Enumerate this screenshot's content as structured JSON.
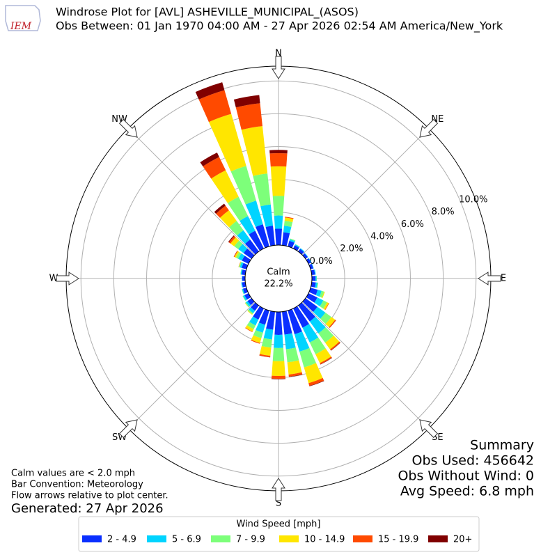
{
  "chart_data": {
    "type": "windrose",
    "title": "Windrose Plot for [AVL] ASHEVILLE_MUNICIPAL_(ASOS)",
    "subtitle": "Obs Between: 01 Jan 1970 04:00 AM - 27 Apr 2026 02:54 AM America/New_York",
    "direction_labels": [
      "N",
      "NE",
      "E",
      "SE",
      "S",
      "SW",
      "W",
      "NW"
    ],
    "x": [
      0,
      10,
      20,
      30,
      40,
      50,
      60,
      70,
      80,
      90,
      100,
      110,
      120,
      130,
      140,
      150,
      160,
      170,
      180,
      190,
      200,
      210,
      220,
      230,
      240,
      250,
      260,
      270,
      280,
      290,
      300,
      310,
      320,
      330,
      340,
      350
    ],
    "ylim": [
      0,
      10.9
    ],
    "yticks": [
      {
        "value": 0,
        "label": "0.0%"
      },
      {
        "value": 2,
        "label": "2.0%"
      },
      {
        "value": 4,
        "label": "4.0%"
      },
      {
        "value": 6,
        "label": "6.0%"
      },
      {
        "value": 8,
        "label": "8.0%"
      },
      {
        "value": 10,
        "label": "10.0%"
      }
    ],
    "calm": {
      "label": "Calm",
      "value": 22.2,
      "value_label": "22.2%"
    },
    "legend_title": "Wind Speed [mph]",
    "series": [
      {
        "name": "2 - 4.9",
        "color": "#0a2fff",
        "values": [
          1.0,
          0.8,
          0.35,
          0.22,
          0.2,
          0.17,
          0.17,
          0.17,
          0.2,
          0.22,
          0.25,
          0.45,
          0.6,
          0.9,
          1.2,
          1.3,
          1.5,
          1.4,
          1.4,
          1.1,
          0.9,
          0.75,
          0.4,
          0.3,
          0.27,
          0.22,
          0.2,
          0.17,
          0.22,
          0.3,
          0.45,
          0.6,
          0.9,
          1.2,
          1.4,
          1.2
        ]
      },
      {
        "name": "5 - 6.9",
        "color": "#00d4ff",
        "values": [
          0.8,
          0.4,
          0.1,
          0.06,
          0.05,
          0.03,
          0.03,
          0.03,
          0.05,
          0.06,
          0.1,
          0.25,
          0.4,
          0.6,
          0.9,
          1.0,
          1.1,
          0.9,
          0.8,
          0.6,
          0.5,
          0.4,
          0.18,
          0.13,
          0.1,
          0.06,
          0.05,
          0.03,
          0.06,
          0.12,
          0.25,
          0.4,
          0.7,
          1.0,
          1.5,
          1.3
        ]
      },
      {
        "name": "7 - 9.9",
        "color": "#7dff7a",
        "values": [
          1.2,
          0.3,
          0.05,
          0.02,
          0,
          0,
          0,
          0,
          0,
          0.02,
          0.05,
          0.15,
          0.25,
          0.45,
          0.7,
          0.8,
          1.0,
          0.8,
          0.8,
          0.5,
          0.35,
          0.25,
          0.08,
          0.05,
          0.03,
          0.02,
          0,
          0,
          0.02,
          0.05,
          0.15,
          0.3,
          0.7,
          1.3,
          2.2,
          1.9
        ]
      },
      {
        "name": "10 - 14.9",
        "color": "#ffe600",
        "values": [
          1.8,
          0.2,
          0,
          0,
          0,
          0,
          0,
          0,
          0,
          0,
          0,
          0.05,
          0.12,
          0.28,
          0.5,
          0.6,
          1.0,
          0.75,
          0.9,
          0.5,
          0.3,
          0.17,
          0.04,
          0.02,
          0,
          0,
          0,
          0,
          0,
          0.02,
          0.1,
          0.28,
          0.8,
          1.8,
          3.3,
          2.9
        ]
      },
      {
        "name": "15 - 19.9",
        "color": "#ff4a00",
        "values": [
          0.8,
          0.05,
          0,
          0,
          0,
          0,
          0,
          0,
          0,
          0,
          0,
          0,
          0.03,
          0.06,
          0.08,
          0.08,
          0.17,
          0.13,
          0.17,
          0.09,
          0.05,
          0.03,
          0,
          0,
          0,
          0,
          0,
          0,
          0,
          0.01,
          0.04,
          0.12,
          0.35,
          0.9,
          1.5,
          1.4
        ]
      },
      {
        "name": "20+",
        "color": "#800000",
        "values": [
          0.2,
          0,
          0,
          0,
          0,
          0,
          0,
          0,
          0,
          0,
          0,
          0,
          0,
          0.01,
          0.02,
          0.02,
          0.03,
          0.02,
          0.03,
          0.01,
          0,
          0,
          0,
          0,
          0,
          0,
          0,
          0,
          0,
          0,
          0.01,
          0.05,
          0.15,
          0.3,
          0.5,
          0.5
        ]
      }
    ]
  },
  "logo": "IEM",
  "notes": [
    "Calm values are < 2.0 mph",
    "Bar Convention: Meteorology",
    "Flow arrows relative to plot center."
  ],
  "generated": "Generated: 27 Apr 2026",
  "summary": [
    "Summary",
    "Obs Used: 456642",
    "Obs Without Wind: 0",
    "Avg Speed: 6.8 mph"
  ]
}
